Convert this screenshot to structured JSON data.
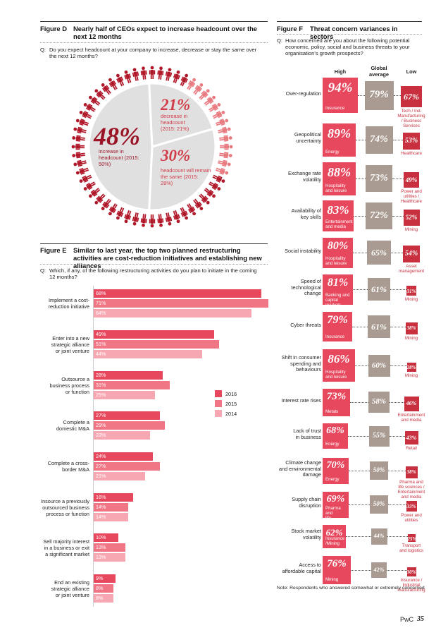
{
  "figure_d": {
    "label": "Figure D",
    "title": "Nearly half of CEOs expect to increase headcount over the next 12 months",
    "question_prefix": "Q:",
    "question": "Do you expect headcount at your company to increase, decrease or stay the same over the next 12 months?",
    "segments": [
      {
        "value": "48%",
        "text": "increase in headcount (2015: 50%)",
        "percent": 48,
        "color": "#e0e0e0"
      },
      {
        "value": "21%",
        "text": "decrease in headcount (2015: 21%)",
        "percent": 21,
        "color": "#e0e0e0"
      },
      {
        "value": "30%",
        "text": "headcount will remain the same (2015: 28%)",
        "percent": 30,
        "color": "#e0e0e0"
      }
    ],
    "colors": {
      "people_red": "#b0182a",
      "people_light": "#e87a80",
      "value_dark": "#9b1526",
      "text_red": "#d13c48"
    }
  },
  "figure_e": {
    "label": "Figure E",
    "title": "Similar to last year, the top two planned restructuring activities are cost-reduction initiatives and establishing new alliances",
    "question_prefix": "Q:",
    "question": "Which, if any, of the following restructuring activities do you plan to initiate in the coming 12 months?",
    "legend": [
      {
        "name": "2016",
        "color": "#e8485e"
      },
      {
        "name": "2015",
        "color": "#f07585"
      },
      {
        "name": "2014",
        "color": "#f7a7b2"
      }
    ],
    "chart_data": {
      "type": "bar",
      "orientation": "horizontal",
      "categories": [
        "Implement a cost-reduction initiative",
        "Enter into a new strategic alliance or joint venture",
        "Outsource a business process or function",
        "Complete a domestic M&A",
        "Complete a cross-border M&A",
        "Insource a previously outsourced business process or function",
        "Sell majority interest in a business or exit a significant market",
        "End an existing strategic alliance or joint venture"
      ],
      "series": [
        {
          "name": "2016",
          "values": [
            68,
            49,
            28,
            27,
            24,
            16,
            10,
            9
          ]
        },
        {
          "name": "2015",
          "values": [
            71,
            51,
            31,
            29,
            27,
            14,
            13,
            8
          ]
        },
        {
          "name": "2014",
          "values": [
            64,
            44,
            25,
            23,
            21,
            14,
            13,
            8
          ]
        }
      ],
      "category_lines": [
        [
          "Implement a cost-",
          "reduction initiative"
        ],
        [
          "Enter into a new",
          "strategic alliance",
          "or joint venture"
        ],
        [
          "Outsource a",
          "business process",
          "or function"
        ],
        [
          "Complete a",
          "domestic M&A"
        ],
        [
          "Complete a cross-",
          "border M&A"
        ],
        [
          "Insource a previously",
          "outsourced business",
          "process or function"
        ],
        [
          "Sell majority interest",
          "in a business or exit",
          "a significant market"
        ],
        [
          "End an existing",
          "strategic alliance",
          "or joint venture"
        ]
      ]
    }
  },
  "figure_f": {
    "label": "Figure F",
    "title": "Threat concern variances in sectors",
    "question_prefix": "Q:",
    "question": "How concerned are you about the following potential economic, policy, social and business threats to your organisation's growth prospects?",
    "headers": {
      "high": "High",
      "global": "Global average",
      "low": "Low"
    },
    "colors": {
      "high": "#e8485e",
      "global": "#a99b91",
      "low": "#c8303f"
    },
    "rows": [
      {
        "label": "Over-regulation",
        "high": "94%",
        "high_pct": 94,
        "high_sector": "Insurance",
        "global": "79%",
        "global_pct": 79,
        "low": "67%",
        "low_pct": 67,
        "low_sector": "Tech / Ind. Manufacturing / Business Services"
      },
      {
        "label": "Geopolitical uncertainty",
        "high": "89%",
        "high_pct": 89,
        "high_sector": "Energy",
        "global": "74%",
        "global_pct": 74,
        "low": "53%",
        "low_pct": 53,
        "low_sector": "Healthcare"
      },
      {
        "label": "Exchange rate volatility",
        "high": "88%",
        "high_pct": 88,
        "high_sector": "Hospitality and leisure",
        "global": "73%",
        "global_pct": 73,
        "low": "49%",
        "low_pct": 49,
        "low_sector": "Power and utilities / Healthcare"
      },
      {
        "label": "Availability of key skills",
        "high": "83%",
        "high_pct": 83,
        "high_sector": "Entertainment and media",
        "global": "72%",
        "global_pct": 72,
        "low": "52%",
        "low_pct": 52,
        "low_sector": "Mining"
      },
      {
        "label": "Social instability",
        "high": "80%",
        "high_pct": 80,
        "high_sector": "Hospitality and leisure",
        "global": "65%",
        "global_pct": 65,
        "low": "54%",
        "low_pct": 54,
        "low_sector": "Asset management"
      },
      {
        "label": "Speed of technological change",
        "high": "81%",
        "high_pct": 81,
        "high_sector": "Banking and capital markets",
        "global": "61%",
        "global_pct": 61,
        "low": "31%",
        "low_pct": 31,
        "low_sector": "Mining"
      },
      {
        "label": "Cyber threats",
        "high": "79%",
        "high_pct": 79,
        "high_sector": "Insurance",
        "global": "61%",
        "global_pct": 61,
        "low": "38%",
        "low_pct": 38,
        "low_sector": "Mining"
      },
      {
        "label": "Shift in consumer spending and behaviours",
        "high": "86%",
        "high_pct": 86,
        "high_sector": "Hospitality and leisure",
        "global": "60%",
        "global_pct": 60,
        "low": "28%",
        "low_pct": 28,
        "low_sector": "Mining"
      },
      {
        "label": "Interest rate rises",
        "high": "73%",
        "high_pct": 73,
        "high_sector": "Metals",
        "global": "58%",
        "global_pct": 58,
        "low": "46%",
        "low_pct": 46,
        "low_sector": "Entertainment and media"
      },
      {
        "label": "Lack of trust in business",
        "high": "68%",
        "high_pct": 68,
        "high_sector": "Energy",
        "global": "55%",
        "global_pct": 55,
        "low": "43%",
        "low_pct": 43,
        "low_sector": "Retail"
      },
      {
        "label": "Climate change and environmental damage",
        "high": "70%",
        "high_pct": 70,
        "high_sector": "Energy",
        "global": "50%",
        "global_pct": 50,
        "low": "38%",
        "low_pct": 38,
        "low_sector": "Pharma and life sciences / Entertainment and media"
      },
      {
        "label": "Supply chain disruption",
        "high": "69%",
        "high_pct": 69,
        "high_sector": "Pharma and life sciences",
        "global": "50%",
        "global_pct": 50,
        "low": "33%",
        "low_pct": 33,
        "low_sector": "Power and utilities"
      },
      {
        "label": "Stock market volatility",
        "high": "62%",
        "high_pct": 62,
        "high_sector": "Insurance /Mining",
        "global": "44%",
        "global_pct": 44,
        "low": "25%",
        "low_pct": 25,
        "low_sector": "Transport and logistics"
      },
      {
        "label": "Access to affordable capital",
        "high": "76%",
        "high_pct": 76,
        "high_sector": "Mining",
        "global": "42%",
        "global_pct": 42,
        "low": "30%",
        "low_pct": 30,
        "low_sector": "Insurance / Industrial manufacturing"
      }
    ],
    "row_label_lines": [
      [
        "Over-regulation"
      ],
      [
        "Geopolitical",
        "uncertainty"
      ],
      [
        "Exchange rate",
        "volatility"
      ],
      [
        "Availability of",
        "key skills"
      ],
      [
        "Social instability"
      ],
      [
        "Speed of",
        "technological",
        "change"
      ],
      [
        "Cyber threats"
      ],
      [
        "Shift in consumer",
        "spending and",
        "behaviours"
      ],
      [
        "Interest rate rises"
      ],
      [
        "Lack of trust",
        "in business"
      ],
      [
        "Climate change",
        "and environmental",
        "damage"
      ],
      [
        "Supply chain",
        "disruption"
      ],
      [
        "Stock market",
        "volatility"
      ],
      [
        "Access to",
        "affordable capital"
      ]
    ],
    "low_sector_lines": [
      [
        "Tech / Ind.",
        "Manufacturing",
        "/ Business",
        "Services"
      ],
      [
        "Healthcare"
      ],
      [
        "Power and",
        "utilities /",
        "Healthcare"
      ],
      [
        "Mining"
      ],
      [
        "Asset",
        "management"
      ],
      [
        "Mining"
      ],
      [
        "Mining"
      ],
      [
        "Mining"
      ],
      [
        "Entertainment",
        "and media"
      ],
      [
        "Retail"
      ],
      [
        "Pharma and",
        "life sciences /",
        "Entertainment",
        "and media"
      ],
      [
        "Power and",
        "utilities"
      ],
      [
        "Transport",
        "and logistics"
      ],
      [
        "Insurance /",
        "Industrial",
        "manufacturing"
      ]
    ],
    "high_sector_lines": [
      [
        "Insurance"
      ],
      [
        "Energy"
      ],
      [
        "Hospitality",
        "and leisure"
      ],
      [
        "Entertainment",
        "and media"
      ],
      [
        "Hospitality",
        "and leisure"
      ],
      [
        "Banking and",
        "capital markets"
      ],
      [
        "Insurance"
      ],
      [
        "Hospitality",
        "and leisure"
      ],
      [
        "Metals"
      ],
      [
        "Energy"
      ],
      [
        "Energy"
      ],
      [
        "Pharma and",
        "life sciences"
      ],
      [
        "Insurance",
        "/Mining"
      ],
      [
        "Mining"
      ]
    ],
    "note": "Note: Respondents who answered somewhat or extremely concerned"
  },
  "footer": {
    "brand": "PwC",
    "page": "35"
  }
}
